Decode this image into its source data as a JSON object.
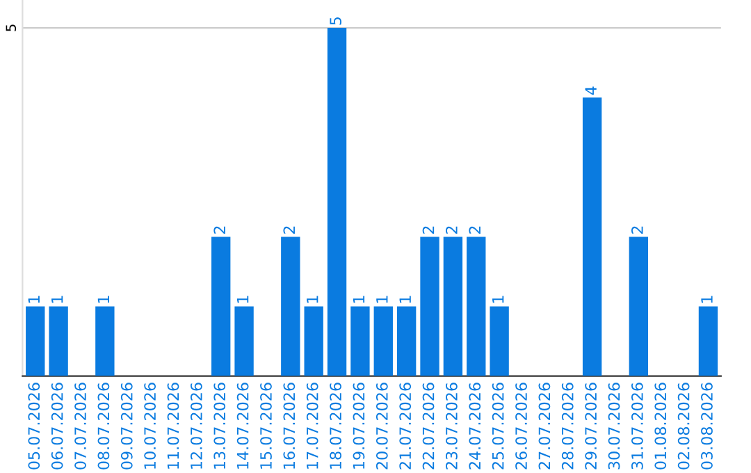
{
  "chart_data": {
    "type": "bar",
    "categories": [
      "05.07.2026",
      "06.07.2026",
      "07.07.2026",
      "08.07.2026",
      "09.07.2026",
      "10.07.2026",
      "11.07.2026",
      "12.07.2026",
      "13.07.2026",
      "14.07.2026",
      "15.07.2026",
      "16.07.2026",
      "17.07.2026",
      "18.07.2026",
      "19.07.2026",
      "20.07.2026",
      "21.07.2026",
      "22.07.2026",
      "23.07.2026",
      "24.07.2026",
      "25.07.2026",
      "26.07.2026",
      "27.07.2026",
      "28.07.2026",
      "29.07.2026",
      "30.07.2026",
      "31.07.2026",
      "01.08.2026",
      "02.08.2026",
      "03.08.2026"
    ],
    "values": [
      1,
      1,
      0,
      1,
      0,
      0,
      0,
      0,
      2,
      1,
      0,
      2,
      1,
      5,
      1,
      1,
      1,
      2,
      2,
      2,
      1,
      0,
      0,
      0,
      4,
      0,
      2,
      0,
      0,
      1
    ],
    "value_labels": [
      "1",
      "1",
      null,
      "1",
      null,
      null,
      null,
      null,
      "2",
      "1",
      null,
      "2",
      "1",
      "5",
      "1",
      "1",
      "1",
      "2",
      "2",
      "2",
      "1",
      null,
      null,
      null,
      "4",
      null,
      "2",
      null,
      null,
      "1"
    ],
    "color": "#0a7be0",
    "ylim": [
      0,
      5.4
    ],
    "yticks": [
      5
    ],
    "grid": "y",
    "legend": false
  }
}
